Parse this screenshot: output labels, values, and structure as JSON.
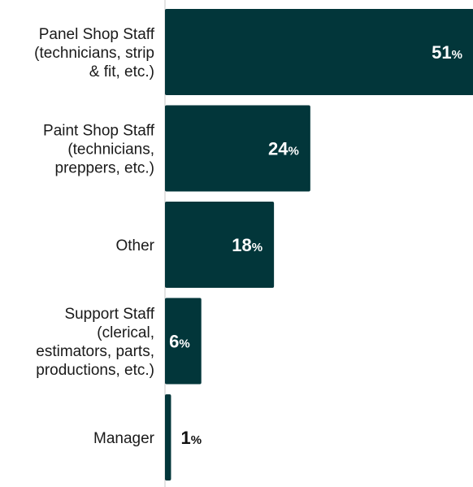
{
  "chart_data": {
    "type": "bar",
    "orientation": "horizontal",
    "categories": [
      [
        "Panel Shop Staff",
        "(technicians, strip",
        "& fit, etc.)"
      ],
      [
        "Paint Shop Staff",
        "(technicians,",
        "preppers, etc.)"
      ],
      [
        "Other"
      ],
      [
        "Support Staff",
        "(clerical,",
        "estimators, parts,",
        "productions, etc.)"
      ],
      [
        "Manager"
      ]
    ],
    "values": [
      51,
      24,
      18,
      6,
      1
    ],
    "value_suffix": "%",
    "xlim": [
      0,
      51
    ],
    "grid": false,
    "legend": "none",
    "title": "",
    "xlabel": "",
    "ylabel": "",
    "colors": {
      "bar": "#02363a",
      "label_inside": "#ffffff",
      "label_outside": "#111111",
      "axis": "#c8c8c8"
    }
  }
}
